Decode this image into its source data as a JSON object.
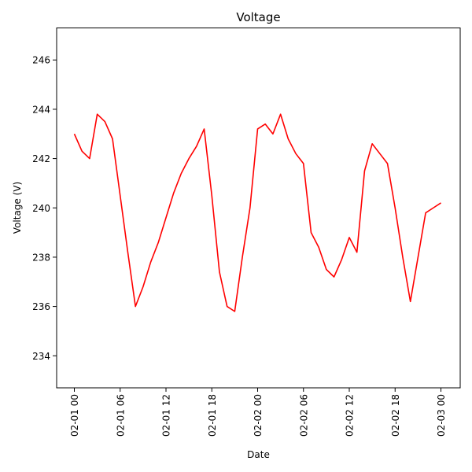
{
  "chart_data": {
    "type": "line",
    "title": "Voltage",
    "xlabel": "Date",
    "ylabel": "Voltage (V)",
    "x_ticks": [
      "02-01 00",
      "02-01 06",
      "02-01 12",
      "02-01 18",
      "02-02 00",
      "02-02 06",
      "02-02 12",
      "02-02 18",
      "02-03 00"
    ],
    "x_range": [
      "2007-02-01 00:00",
      "2007-02-03 00:00"
    ],
    "y_ticks": [
      234,
      236,
      238,
      240,
      242,
      244,
      246
    ],
    "ylim": [
      232.7,
      247.3
    ],
    "grid": false,
    "series": [
      {
        "color": "#ff0000",
        "x": [
          "2007-02-01 00:00",
          "2007-02-01 01:00",
          "2007-02-01 02:00",
          "2007-02-01 03:00",
          "2007-02-01 04:00",
          "2007-02-01 05:00",
          "2007-02-01 06:00",
          "2007-02-01 07:00",
          "2007-02-01 08:00",
          "2007-02-01 09:00",
          "2007-02-01 10:00",
          "2007-02-01 11:00",
          "2007-02-01 12:00",
          "2007-02-01 13:00",
          "2007-02-01 14:00",
          "2007-02-01 15:00",
          "2007-02-01 16:00",
          "2007-02-01 17:00",
          "2007-02-01 18:00",
          "2007-02-01 19:00",
          "2007-02-01 20:00",
          "2007-02-01 21:00",
          "2007-02-01 22:00",
          "2007-02-01 23:00",
          "2007-02-02 00:00",
          "2007-02-02 01:00",
          "2007-02-02 02:00",
          "2007-02-02 03:00",
          "2007-02-02 04:00",
          "2007-02-02 05:00",
          "2007-02-02 06:00",
          "2007-02-02 07:00",
          "2007-02-02 08:00",
          "2007-02-02 09:00",
          "2007-02-02 10:00",
          "2007-02-02 11:00",
          "2007-02-02 12:00",
          "2007-02-02 13:00",
          "2007-02-02 14:00",
          "2007-02-02 15:00",
          "2007-02-02 16:00",
          "2007-02-02 17:00",
          "2007-02-02 18:00",
          "2007-02-02 19:00",
          "2007-02-02 20:00",
          "2007-02-02 21:00",
          "2007-02-02 22:00",
          "2007-02-02 23:00",
          "2007-02-03 00:00"
        ],
        "y": [
          243.0,
          242.3,
          242.0,
          243.8,
          243.5,
          242.8,
          240.5,
          238.2,
          236.0,
          236.8,
          237.8,
          238.6,
          239.6,
          240.6,
          241.4,
          242.0,
          242.5,
          243.2,
          240.5,
          237.4,
          236.0,
          235.8,
          238.0,
          240.0,
          243.2,
          243.4,
          243.0,
          243.8,
          242.8,
          242.2,
          241.8,
          239.0,
          238.4,
          237.5,
          237.2,
          237.9,
          238.8,
          238.2,
          241.5,
          242.6,
          242.2,
          241.8,
          240.0,
          238.0,
          236.2,
          238.0,
          239.8,
          240.0,
          240.2
        ]
      }
    ]
  }
}
